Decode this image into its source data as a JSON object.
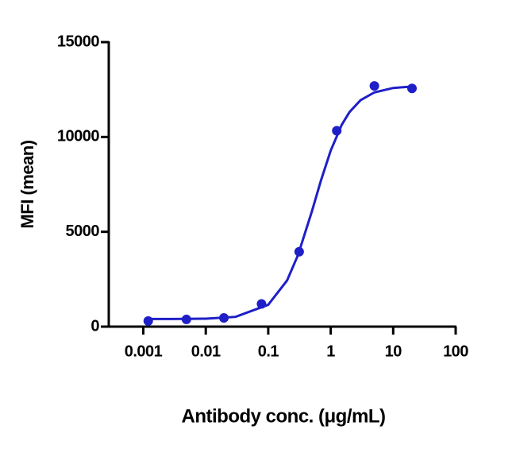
{
  "chart_data": {
    "type": "scatter",
    "x_label": "Antibody conc. (μg/mL)",
    "y_label": "MFI (mean)",
    "xscale": "log",
    "xlim": [
      0.00028,
      100
    ],
    "xticks": [
      0.001,
      0.01,
      0.1,
      1,
      10,
      100
    ],
    "ylim": [
      0,
      15000
    ],
    "yticks": [
      0,
      5000,
      10000,
      15000
    ],
    "series": [
      {
        "type": "scatter",
        "color": "#1f1fc8",
        "x": [
          0.0012,
          0.0049,
          0.0195,
          0.078,
          0.3125,
          1.25,
          5,
          20
        ],
        "values": [
          300,
          380,
          460,
          1200,
          3950,
          10330,
          12690,
          12560
        ]
      },
      {
        "type": "line",
        "color": "#1f1fc8",
        "x": [
          0.0012,
          0.003,
          0.01,
          0.03,
          0.1,
          0.2,
          0.3,
          0.5,
          0.7,
          1,
          1.5,
          2,
          3,
          5,
          10,
          20
        ],
        "values": [
          401,
          403,
          420,
          516,
          1155,
          2433,
          3780,
          6081,
          7721,
          9287,
          10641,
          11314,
          11937,
          12350,
          12582,
          12661
        ]
      }
    ]
  }
}
